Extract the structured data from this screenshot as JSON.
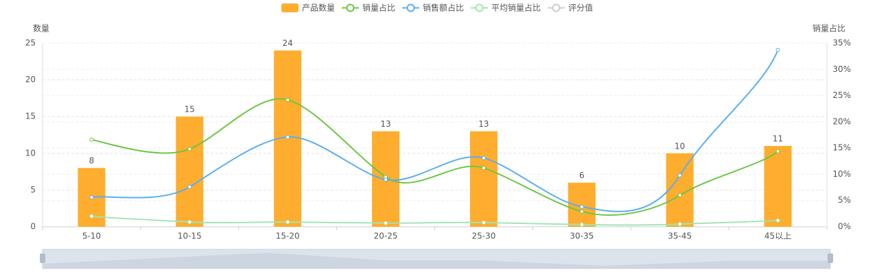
{
  "chart_data": {
    "type": "bar-line",
    "y_label": "数量",
    "y2_label": "销量占比",
    "categories": [
      "5-10",
      "10-15",
      "15-20",
      "20-25",
      "25-30",
      "30-35",
      "35-45",
      "45以上"
    ],
    "ylim": [
      0,
      25
    ],
    "yticks": [
      0,
      5,
      10,
      15,
      20,
      25
    ],
    "y2lim": [
      0,
      35
    ],
    "y2ticks": [
      {
        "value": 0,
        "label": "0%"
      },
      {
        "value": 5,
        "label": "5%"
      },
      {
        "value": 10,
        "label": "10%"
      },
      {
        "value": 15,
        "label": "15%"
      },
      {
        "value": 20,
        "label": "20%"
      },
      {
        "value": 25,
        "label": "25%"
      },
      {
        "value": 30,
        "label": "30%"
      },
      {
        "value": 35,
        "label": "35%"
      }
    ],
    "grid": true,
    "series": [
      {
        "name": "产品数量",
        "type": "bar",
        "color": "#ffad2e",
        "values": [
          8,
          15,
          24,
          13,
          13,
          6,
          10,
          11
        ]
      },
      {
        "name": "销量占比",
        "type": "line",
        "axis": "y2",
        "color": "#6cc644",
        "values": [
          16.6,
          14.8,
          24.2,
          9.5,
          11.2,
          2.9,
          6.0,
          14.4
        ]
      },
      {
        "name": "销售额占比",
        "type": "line",
        "axis": "y2",
        "color": "#5aaef0",
        "values": [
          5.6,
          7.6,
          17.1,
          9.0,
          13.1,
          3.8,
          9.8,
          33.7
        ]
      },
      {
        "name": "平均销量占比",
        "type": "line",
        "axis": "y2",
        "color": "#9ee6b4",
        "values": [
          2.0,
          0.9,
          0.9,
          0.7,
          0.8,
          0.4,
          0.5,
          1.2
        ]
      },
      {
        "name": "评分值",
        "type": "line",
        "axis": "y2",
        "color": "#cccccc",
        "visible": false,
        "values": [
          null,
          null,
          null,
          null,
          null,
          null,
          null,
          null
        ]
      }
    ]
  }
}
